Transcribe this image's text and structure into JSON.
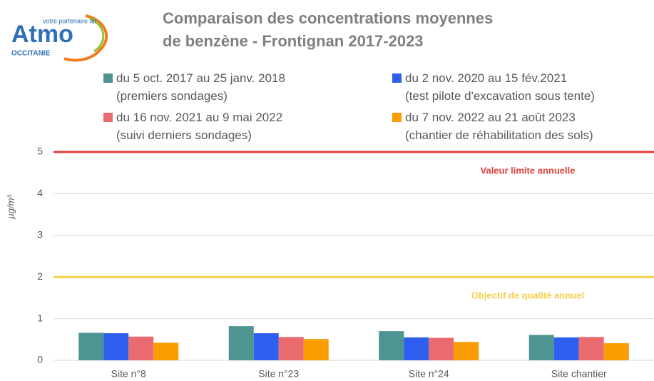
{
  "logo": {
    "tagline": "votre partenaire air",
    "name": "Atmo",
    "region": "OCCITANIE"
  },
  "chart_data": {
    "type": "bar",
    "title": "Comparaison des concentrations moyennes\nde benzène - Frontignan 2017-2023",
    "y_label": "µg/m³",
    "categories": [
      "Site n°8",
      "Site n°23",
      "Site n°24",
      "Site chantier"
    ],
    "series": [
      {
        "name": "du 5 oct. 2017 au 25 janv. 2018\n(premiers sondages)",
        "color": "#4e9490",
        "values": [
          0.66,
          0.82,
          0.7,
          0.61
        ]
      },
      {
        "name": "du 2 nov. 2020 au 15 fév.2021\n(test pilote d'excavation sous tente)",
        "color": "#2f5fef",
        "values": [
          0.65,
          0.65,
          0.55,
          0.55
        ]
      },
      {
        "name": "du 16 nov. 2021 au 9 mai 2022\n(suivi derniers sondages)",
        "color": "#e96b6f",
        "values": [
          0.57,
          0.56,
          0.54,
          0.56
        ]
      },
      {
        "name": "du 7 nov. 2022 au 21 août 2023\n(chantier de réhabilitation des sols)",
        "color": "#f99c00",
        "values": [
          0.42,
          0.51,
          0.44,
          0.41
        ]
      }
    ],
    "reference_lines": [
      {
        "value": 5,
        "label": "Valeur limite annuelle",
        "color": "#e0403a"
      },
      {
        "value": 2,
        "label": "Objectif de qualité annuel",
        "color": "#f6cf4a"
      }
    ],
    "ylim": [
      0,
      5
    ],
    "yticks": [
      0,
      1,
      2,
      3,
      4,
      5
    ],
    "grid": true
  }
}
